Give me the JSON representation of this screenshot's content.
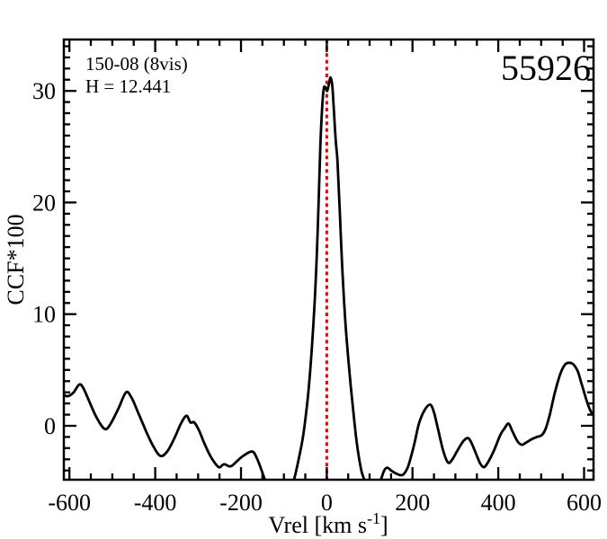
{
  "chart_data": {
    "type": "line",
    "title_id": "55926",
    "annotations": {
      "field_line": "150-08 (8vis)",
      "h_line": "H = 12.441"
    },
    "xlabel": {
      "main": "Vrel [km s",
      "sup": "-1",
      "close": "]"
    },
    "ylabel": "CCF*100",
    "x_ticks": [
      -600,
      -400,
      -200,
      0,
      200,
      400,
      600
    ],
    "x_tick_labels": [
      "-600",
      "-400",
      "-200",
      "0",
      "200",
      "400",
      "600"
    ],
    "y_ticks": [
      0,
      10,
      20,
      30
    ],
    "y_tick_labels": [
      "0",
      "10",
      "20",
      "30"
    ],
    "x_minor_step": 50,
    "y_minor_step": 1,
    "xlim": [
      -613,
      622
    ],
    "ylim": [
      -4.83,
      34.6
    ],
    "ref_line_x": 0,
    "legend": "none",
    "grid": "off",
    "colors": {
      "curve": "#000000",
      "ref_line": "#ee0000",
      "background": "#ffffff"
    },
    "series": [
      {
        "name": "CCF",
        "points": [
          [
            -613,
            2.8
          ],
          [
            -607,
            2.65
          ],
          [
            -600,
            2.7
          ],
          [
            -590,
            3.0
          ],
          [
            -577,
            3.7
          ],
          [
            -568,
            3.4
          ],
          [
            -555,
            2.3
          ],
          [
            -540,
            1.0
          ],
          [
            -525,
            0.0
          ],
          [
            -514,
            -0.3
          ],
          [
            -502,
            0.3
          ],
          [
            -485,
            1.6
          ],
          [
            -468,
            3.0
          ],
          [
            -455,
            2.5
          ],
          [
            -440,
            1.2
          ],
          [
            -420,
            -0.6
          ],
          [
            -405,
            -1.8
          ],
          [
            -388,
            -2.7
          ],
          [
            -372,
            -2.3
          ],
          [
            -355,
            -1.1
          ],
          [
            -340,
            0.2
          ],
          [
            -327,
            0.9
          ],
          [
            -318,
            0.3
          ],
          [
            -309,
            0.3
          ],
          [
            -298,
            -0.4
          ],
          [
            -285,
            -1.6
          ],
          [
            -270,
            -2.8
          ],
          [
            -252,
            -3.7
          ],
          [
            -243,
            -3.5
          ],
          [
            -237,
            -3.45
          ],
          [
            -230,
            -3.6
          ],
          [
            -222,
            -3.6
          ],
          [
            -210,
            -3.2
          ],
          [
            -195,
            -2.7
          ],
          [
            -174,
            -2.3
          ],
          [
            -163,
            -2.9
          ],
          [
            -152,
            -4.0
          ],
          [
            -143,
            -5.0
          ],
          [
            -132,
            -6.3
          ],
          [
            -120,
            -7.3
          ],
          [
            -108,
            -7.6
          ],
          [
            -95,
            -6.8
          ],
          [
            -83,
            -5.4
          ],
          [
            -76,
            -4.8
          ],
          [
            -65,
            -2.9
          ],
          [
            -55,
            -0.9
          ],
          [
            -45,
            2.2
          ],
          [
            -38,
            5.2
          ],
          [
            -30,
            9.8
          ],
          [
            -24,
            14.5
          ],
          [
            -19,
            20.0
          ],
          [
            -15,
            25.0
          ],
          [
            -11,
            28.3
          ],
          [
            -7,
            30.2
          ],
          [
            -3,
            30.3
          ],
          [
            1,
            30.0
          ],
          [
            5,
            30.6
          ],
          [
            9,
            31.2
          ],
          [
            13,
            30.4
          ],
          [
            17,
            28.0
          ],
          [
            21,
            25.5
          ],
          [
            25,
            23.7
          ],
          [
            30,
            19.5
          ],
          [
            36,
            14.3
          ],
          [
            43,
            9.5
          ],
          [
            52,
            5.2
          ],
          [
            60,
            2.0
          ],
          [
            70,
            -1.5
          ],
          [
            80,
            -3.9
          ],
          [
            88,
            -4.9
          ],
          [
            97,
            -6.2
          ],
          [
            108,
            -7.0
          ],
          [
            118,
            -6.2
          ],
          [
            126,
            -4.9
          ],
          [
            134,
            -4.0
          ],
          [
            141,
            -3.75
          ],
          [
            150,
            -4.0
          ],
          [
            160,
            -4.25
          ],
          [
            170,
            -4.4
          ],
          [
            179,
            -4.35
          ],
          [
            190,
            -3.6
          ],
          [
            203,
            -1.8
          ],
          [
            215,
            0.2
          ],
          [
            228,
            1.4
          ],
          [
            241,
            1.9
          ],
          [
            250,
            1.2
          ],
          [
            260,
            -0.4
          ],
          [
            272,
            -2.3
          ],
          [
            283,
            -3.3
          ],
          [
            293,
            -3.0
          ],
          [
            305,
            -2.2
          ],
          [
            318,
            -1.4
          ],
          [
            329,
            -1.1
          ],
          [
            337,
            -1.5
          ],
          [
            348,
            -2.5
          ],
          [
            358,
            -3.4
          ],
          [
            367,
            -3.7
          ],
          [
            377,
            -3.2
          ],
          [
            390,
            -2.2
          ],
          [
            405,
            -0.8
          ],
          [
            415,
            -0.2
          ],
          [
            424,
            0.2
          ],
          [
            433,
            -0.5
          ],
          [
            445,
            -1.4
          ],
          [
            455,
            -1.7
          ],
          [
            465,
            -1.5
          ],
          [
            478,
            -1.2
          ],
          [
            490,
            -1.0
          ],
          [
            501,
            -0.85
          ],
          [
            510,
            -0.3
          ],
          [
            520,
            1.0
          ],
          [
            532,
            3.0
          ],
          [
            545,
            4.7
          ],
          [
            556,
            5.5
          ],
          [
            566,
            5.65
          ],
          [
            575,
            5.5
          ],
          [
            585,
            4.9
          ],
          [
            594,
            3.8
          ],
          [
            604,
            2.5
          ],
          [
            613,
            1.5
          ],
          [
            622,
            0.9
          ]
        ]
      }
    ]
  }
}
